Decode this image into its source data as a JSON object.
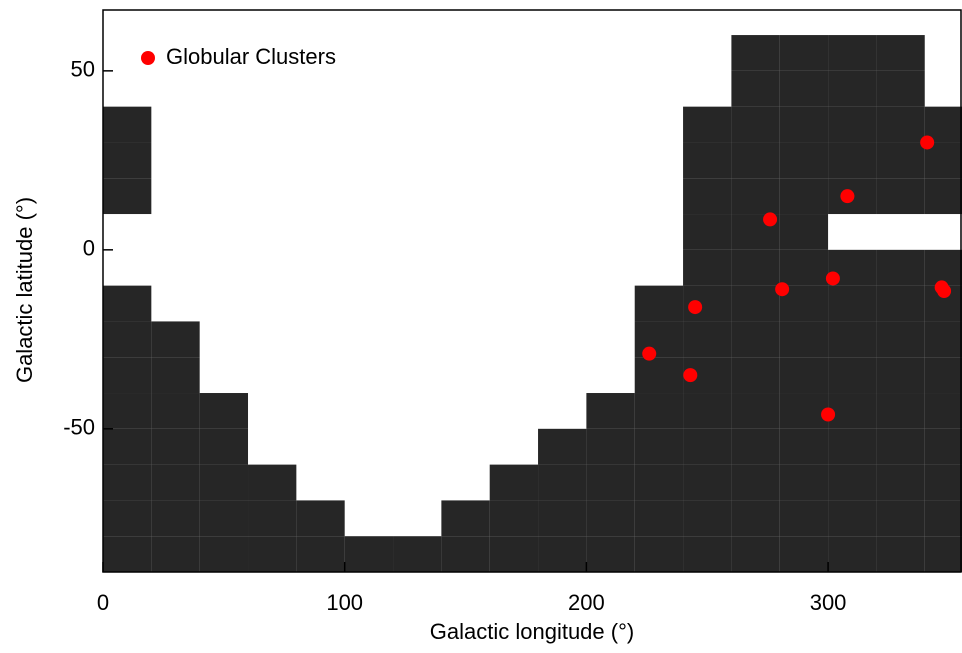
{
  "chart_data": {
    "type": "scatter",
    "xlabel": "Galactic longitude (°)",
    "ylabel": "Galactic latitude (°)",
    "xlim": [
      0,
      355
    ],
    "ylim": [
      -90,
      67
    ],
    "xticks": [
      0,
      100,
      200,
      300
    ],
    "yticks": [
      -50,
      0,
      50
    ],
    "legend": "top-left",
    "series": [
      {
        "color": "#000000",
        "x": [
          10,
          30,
          50,
          70,
          90,
          110,
          130,
          150,
          170,
          190,
          210,
          230,
          250,
          270,
          290,
          310,
          330,
          350,
          10,
          30,
          50,
          70,
          90,
          150,
          170,
          190,
          210,
          230,
          250,
          270,
          290,
          310,
          330,
          350,
          10,
          30,
          50,
          70,
          170,
          190,
          210,
          230,
          250,
          270,
          290,
          310,
          330,
          350,
          10,
          30,
          50,
          190,
          210,
          230,
          250,
          270,
          290,
          310,
          330,
          350,
          10,
          30,
          50,
          210,
          230,
          250,
          270,
          290,
          310,
          330,
          350,
          10,
          30,
          230,
          250,
          270,
          290,
          310,
          330,
          350,
          10,
          30,
          230,
          250,
          270,
          290,
          310,
          330,
          350,
          10,
          230,
          250,
          270,
          290,
          310,
          330,
          350,
          250,
          270,
          290,
          310,
          330,
          350,
          250,
          270,
          290,
          10,
          250,
          270,
          290,
          310,
          330,
          350,
          10,
          250,
          270,
          290,
          310,
          330,
          350,
          10,
          250,
          270,
          290,
          310,
          330,
          350,
          270,
          290,
          310,
          330,
          270,
          290,
          310,
          330
        ],
        "values": [
          -85,
          -85,
          -85,
          -85,
          -85,
          -85,
          -85,
          -85,
          -85,
          -85,
          -85,
          -85,
          -85,
          -85,
          -85,
          -85,
          -85,
          -85,
          -75,
          -75,
          -75,
          -75,
          -75,
          -75,
          -75,
          -75,
          -75,
          -75,
          -75,
          -75,
          -75,
          -75,
          -75,
          -75,
          -65,
          -65,
          -65,
          -65,
          -65,
          -65,
          -65,
          -65,
          -65,
          -65,
          -65,
          -65,
          -65,
          -65,
          -55,
          -55,
          -55,
          -55,
          -55,
          -55,
          -55,
          -55,
          -55,
          -55,
          -55,
          -55,
          -45,
          -45,
          -45,
          -45,
          -45,
          -45,
          -45,
          -45,
          -45,
          -45,
          -45,
          -35,
          -35,
          -35,
          -35,
          -35,
          -35,
          -35,
          -35,
          -35,
          -25,
          -25,
          -25,
          -25,
          -25,
          -25,
          -25,
          -25,
          -25,
          -15,
          -15,
          -15,
          -15,
          -15,
          -15,
          -15,
          -15,
          -5,
          -5,
          -5,
          -5,
          -5,
          -5,
          5,
          5,
          5,
          15,
          15,
          15,
          15,
          15,
          15,
          15,
          25,
          25,
          25,
          25,
          25,
          25,
          25,
          35,
          35,
          35,
          35,
          35,
          35,
          35,
          45,
          45,
          45,
          45,
          55,
          55,
          55,
          55
        ]
      },
      {
        "name": "Globular Clusters",
        "color": "#ff0000",
        "x": [
          341,
          308,
          276,
          302,
          281,
          347,
          348,
          245,
          226,
          243,
          300
        ],
        "values": [
          30,
          15,
          8.5,
          -8,
          -11,
          -10.5,
          -11.5,
          -16,
          -29,
          -35,
          -46
        ]
      }
    ]
  }
}
